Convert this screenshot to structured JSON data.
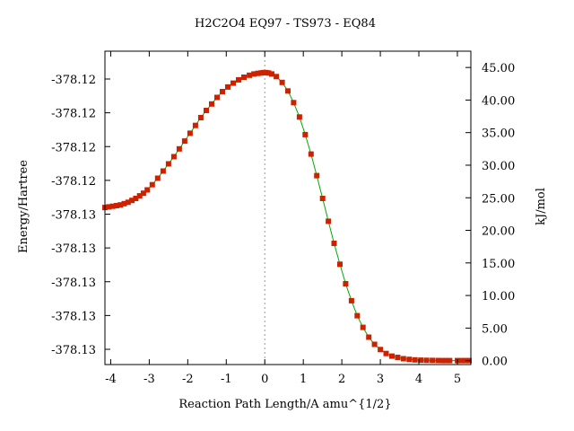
{
  "chart_data": {
    "type": "line",
    "title": "H2C2O4    EQ97 - TS973 - EQ84",
    "xlabel": "Reaction Path Length/A amu^{1/2}",
    "ylabel_left": "Energy/Hartree",
    "ylabel_right": "kJ/mol",
    "xlim": [
      -4.15,
      5.35
    ],
    "ylim_right": [
      -0.6,
      47.5
    ],
    "x_ticks": [
      "-4",
      "-3",
      "-2",
      "-1",
      "0",
      "1",
      "2",
      "3",
      "4",
      "5"
    ],
    "left_tick_labels": [
      "-378.12",
      "-378.12",
      "-378.12",
      "-378.12",
      "-378.13",
      "-378.13",
      "-378.13",
      "-378.13",
      "-378.13"
    ],
    "right_tick_labels": [
      "45.00",
      "40.00",
      "35.00",
      "30.00",
      "25.00",
      "20.00",
      "15.00",
      "10.00",
      "5.00",
      "0.00"
    ],
    "ts_x": 0,
    "grid": false,
    "colors": {
      "line": "#00aa00",
      "marker": "#cc2200",
      "ts_line": "#999999"
    },
    "series": [
      {
        "x": [
          -4.15,
          -4.05,
          -3.95,
          -3.85,
          -3.75,
          -3.65,
          -3.55,
          -3.45,
          -3.35,
          -3.25,
          -3.15,
          -3.05,
          -2.92,
          -2.78,
          -2.64,
          -2.5,
          -2.36,
          -2.22,
          -2.08,
          -1.94,
          -1.8,
          -1.66,
          -1.52,
          -1.38,
          -1.24,
          -1.1,
          -0.96,
          -0.82,
          -0.68,
          -0.54,
          -0.4,
          -0.28,
          -0.18,
          -0.1,
          -0.04,
          0,
          0.04,
          0.1,
          0.18,
          0.3,
          0.45,
          0.6,
          0.75,
          0.9,
          1.05,
          1.2,
          1.35,
          1.5,
          1.65,
          1.8,
          1.95,
          2.1,
          2.25,
          2.4,
          2.55,
          2.7,
          2.85,
          3.0,
          3.15,
          3.3,
          3.45,
          3.6,
          3.75,
          3.9,
          4.05,
          4.2,
          4.35,
          4.5,
          4.6,
          4.7,
          4.8,
          5.0,
          5.1,
          5.2,
          5.3
        ],
        "y": [
          23.5,
          23.6,
          23.7,
          23.8,
          23.9,
          24.1,
          24.3,
          24.6,
          24.9,
          25.3,
          25.7,
          26.2,
          27.0,
          28.0,
          29.1,
          30.2,
          31.3,
          32.5,
          33.7,
          34.9,
          36.1,
          37.3,
          38.4,
          39.4,
          40.4,
          41.3,
          42.0,
          42.6,
          43.1,
          43.5,
          43.8,
          44.0,
          44.1,
          44.15,
          44.2,
          44.2,
          44.2,
          44.15,
          44.0,
          43.6,
          42.7,
          41.4,
          39.6,
          37.4,
          34.7,
          31.7,
          28.4,
          24.9,
          21.4,
          18.0,
          14.8,
          11.8,
          9.2,
          6.9,
          5.1,
          3.6,
          2.5,
          1.7,
          1.1,
          0.7,
          0.5,
          0.3,
          0.2,
          0.12,
          0.08,
          0.05,
          0.03,
          0.02,
          0.01,
          0.0,
          0.0,
          0.0,
          0.0,
          0.0,
          0.0
        ]
      }
    ]
  }
}
